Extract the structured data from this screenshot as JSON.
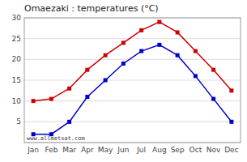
{
  "chart_data": {
    "type": "line",
    "title": "Omaezaki : temperatures (°C)",
    "categories": [
      "Jan",
      "Feb",
      "Mar",
      "Apr",
      "May",
      "Jun",
      "Jul",
      "Aug",
      "Sep",
      "Oct",
      "Nov",
      "Dec"
    ],
    "series": [
      {
        "color": "#cc0000",
        "marker": "square",
        "line_style": "solid",
        "values": [
          10.0,
          10.5,
          13.0,
          17.5,
          21.0,
          24.0,
          27.0,
          29.0,
          26.5,
          22.0,
          17.5,
          12.5
        ]
      },
      {
        "color": "#0000cc",
        "marker": "square",
        "line_style": "solid",
        "values": [
          2.0,
          2.0,
          5.0,
          11.0,
          15.0,
          19.0,
          22.0,
          23.5,
          21.0,
          16.0,
          10.5,
          5.0
        ]
      }
    ],
    "ylim": [
      0,
      30
    ],
    "yticks": [
      {
        "value": 0,
        "label": null
      },
      5,
      10,
      15,
      20,
      25,
      30
    ],
    "grid": true,
    "annotations": [
      "www.allmetsat.com"
    ]
  }
}
